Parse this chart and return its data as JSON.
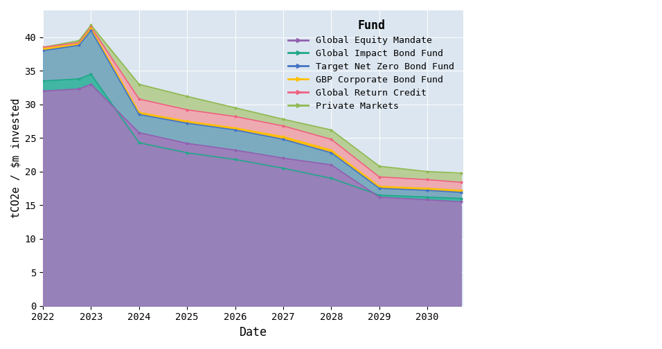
{
  "xlabel": "Date",
  "ylabel": "tCO2e / $m invested",
  "plot_background_color": "#dce6f0",
  "years": [
    2022,
    2022.75,
    2023,
    2024,
    2025,
    2026,
    2027,
    2028,
    2029,
    2030,
    2030.7
  ],
  "funds_ordered": [
    {
      "name": "Private Markets",
      "fill_color": "#b5cc8e",
      "line_color": "#8fba50",
      "values": [
        38.5,
        39.5,
        41.8,
        33.0,
        31.2,
        29.5,
        27.8,
        26.2,
        20.8,
        20.0,
        19.8
      ]
    },
    {
      "name": "Global Return Credit",
      "fill_color": "#f4a7b5",
      "line_color": "#f06080",
      "values": [
        38.5,
        39.2,
        41.5,
        30.8,
        29.2,
        28.2,
        26.8,
        24.8,
        19.2,
        18.8,
        18.4
      ]
    },
    {
      "name": "GBP Corporate Bond Fund",
      "fill_color": "#ffc000",
      "line_color": "#ffc000",
      "values": [
        38.3,
        39.0,
        41.3,
        28.8,
        27.5,
        26.5,
        25.2,
        23.2,
        17.8,
        17.5,
        17.2
      ]
    },
    {
      "name": "Target Net Zero Bond Fund",
      "fill_color": "#6eaad4",
      "line_color": "#4472c4",
      "values": [
        38.0,
        38.8,
        41.0,
        28.5,
        27.2,
        26.2,
        24.8,
        22.8,
        17.5,
        17.2,
        16.9
      ]
    },
    {
      "name": "Global Impact Bond Fund",
      "fill_color": "#3ab8a0",
      "line_color": "#1fa888",
      "values": [
        33.5,
        33.8,
        34.5,
        24.3,
        22.8,
        21.8,
        20.5,
        19.0,
        16.5,
        16.2,
        16.0
      ]
    },
    {
      "name": "Global Equity Mandate",
      "fill_color": "#a07cbb",
      "line_color": "#9060b0",
      "values": [
        32.0,
        32.3,
        33.0,
        25.8,
        24.2,
        23.2,
        22.0,
        21.0,
        16.2,
        15.8,
        15.5
      ]
    }
  ],
  "ylim": [
    0,
    44
  ],
  "xlim": [
    2022,
    2030.75
  ],
  "yticks": [
    0,
    5,
    10,
    15,
    20,
    25,
    30,
    35,
    40
  ],
  "xticks": [
    2022,
    2023,
    2024,
    2025,
    2026,
    2027,
    2028,
    2029,
    2030
  ]
}
